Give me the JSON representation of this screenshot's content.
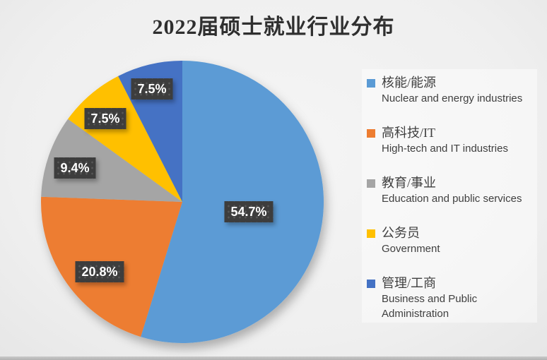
{
  "title": "2022届硕士就业行业分布",
  "chart_data": {
    "type": "pie",
    "title": "2022届硕士就业行业分布",
    "start_angle_deg": 0,
    "direction": "clockwise",
    "legend_position": "right",
    "slices": [
      {
        "label_zh": "核能/能源",
        "label_en": "Nuclear and energy industries",
        "value": 54.7,
        "pct_label": "54.7%",
        "color": "#5B9BD5"
      },
      {
        "label_zh": "高科技/IT",
        "label_en": "High-tech and IT industries",
        "value": 20.8,
        "pct_label": "20.8%",
        "color": "#ED7D31"
      },
      {
        "label_zh": "教育/事业",
        "label_en": "Education and public services",
        "value": 9.4,
        "pct_label": "9.4%",
        "color": "#A5A5A5"
      },
      {
        "label_zh": "公务员",
        "label_en": "Government",
        "value": 7.5,
        "pct_label": "7.5%",
        "color": "#FFC000"
      },
      {
        "label_zh": "管理/工商",
        "label_en": "Business and Public Administration",
        "value": 7.5,
        "pct_label": "7.5%",
        "color": "#4472C4"
      }
    ],
    "data_label_color": "#ffffff",
    "data_label_bg": "#3d3d3d",
    "title_color": "#2f2f2f",
    "legend_text_color": "#3f3f3f"
  }
}
